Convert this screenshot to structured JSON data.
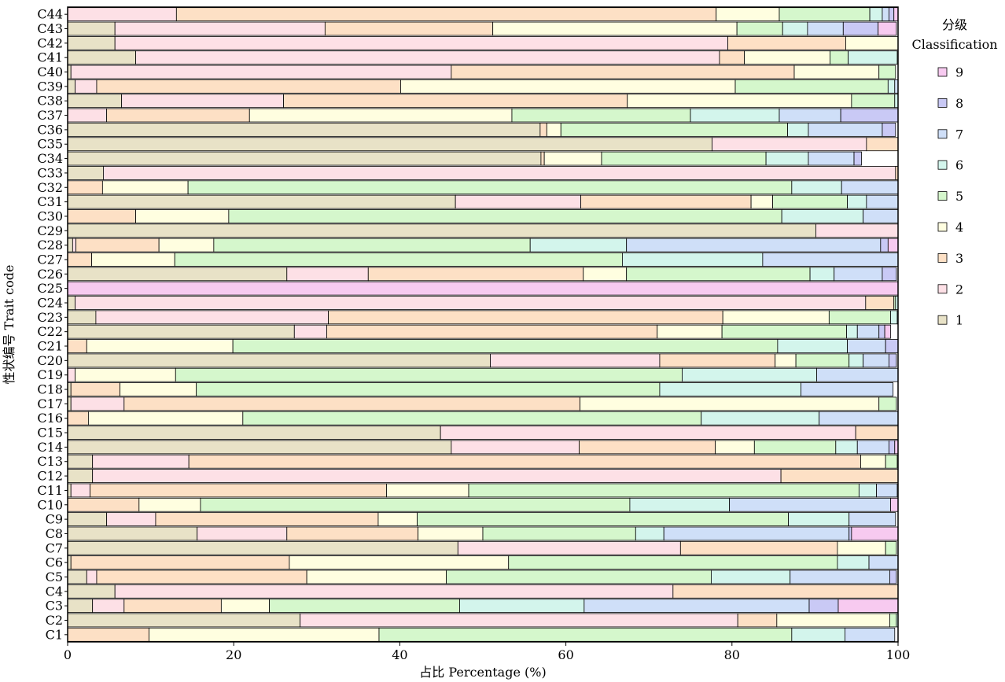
{
  "chart_data": {
    "type": "bar",
    "orientation": "horizontal",
    "stacked": true,
    "xlabel": "占比 Percentage (%)",
    "ylabel": "性状编号 Trait code",
    "xlim": [
      0,
      100
    ],
    "xticks": [
      "0",
      "20",
      "40",
      "60",
      "80",
      "100"
    ],
    "legend": {
      "title_line1": "分级",
      "title_line2": "Classification",
      "entries": [
        "9",
        "8",
        "7",
        "6",
        "5",
        "4",
        "3",
        "2",
        "1"
      ],
      "placement": "right"
    },
    "colors": {
      "1": "#e8e2c7",
      "2": "#fde0e6",
      "3": "#fde0c5",
      "4": "#fffee0",
      "5": "#d5f7cc",
      "6": "#d3f5ec",
      "7": "#cfdff8",
      "8": "#c9c9f5",
      "9": "#f7caf0"
    },
    "categories": [
      "C1",
      "C2",
      "C3",
      "C4",
      "C5",
      "C6",
      "C7",
      "C8",
      "C9",
      "C10",
      "C11",
      "C12",
      "C13",
      "C14",
      "C15",
      "C16",
      "C17",
      "C18",
      "C19",
      "C20",
      "C21",
      "C22",
      "C23",
      "C24",
      "C25",
      "C26",
      "C27",
      "C28",
      "C29",
      "C30",
      "C31",
      "C32",
      "C33",
      "C34",
      "C35",
      "C36",
      "C37",
      "C38",
      "C39",
      "C40",
      "C41",
      "C42",
      "C43",
      "C44"
    ],
    "series": [
      {
        "name": "1",
        "values": [
          0,
          28,
          3,
          5.7,
          2.3,
          0.4,
          47,
          15.6,
          4.7,
          0,
          0.4,
          3,
          3,
          46.2,
          44.9,
          0,
          0.4,
          0.4,
          0,
          50.9,
          0,
          27.3,
          3.4,
          0.9,
          0,
          26.4,
          0,
          0.6,
          90.1,
          0,
          46.7,
          0,
          4.3,
          57,
          77.6,
          56.9,
          0,
          6.5,
          0.9,
          0.4,
          8.2,
          5.7,
          5.7,
          0
        ]
      },
      {
        "name": "2",
        "values": [
          0,
          52.7,
          3.8,
          67.2,
          1.2,
          0,
          26.8,
          10.8,
          5.9,
          0,
          2.3,
          82.9,
          11.6,
          15.4,
          50,
          0,
          6.4,
          0,
          0.9,
          20.4,
          0,
          3.9,
          28,
          95.2,
          0,
          9.8,
          0,
          0.4,
          9.9,
          0,
          15.1,
          0,
          95.4,
          0,
          18.6,
          0,
          4.7,
          19.5,
          2.6,
          45.8,
          70.3,
          73.8,
          25.3,
          13.1
        ]
      },
      {
        "name": "3",
        "values": [
          9.8,
          4.7,
          11.7,
          27.1,
          25.3,
          26.3,
          18.9,
          15.8,
          26.8,
          8.6,
          35.7,
          14.1,
          80.9,
          16.4,
          5.1,
          2.5,
          54.9,
          5.9,
          0,
          13.9,
          2.3,
          39.8,
          47.5,
          3.4,
          0,
          25.9,
          2.9,
          10,
          0,
          8.2,
          20.5,
          4.2,
          0.3,
          0.4,
          3.8,
          0.8,
          17.2,
          41.4,
          36.6,
          41.3,
          3,
          14.2,
          20.2,
          65
        ]
      },
      {
        "name": "4",
        "values": [
          27.7,
          13.6,
          5.8,
          0,
          16.8,
          26.4,
          5.8,
          7.8,
          4.7,
          7.4,
          9.9,
          0,
          3,
          4.7,
          0,
          18.6,
          36,
          9.2,
          12.1,
          2.5,
          17.6,
          7.8,
          12.8,
          0,
          0,
          5.2,
          10,
          6.6,
          0,
          11.2,
          2.6,
          10.3,
          0,
          6.9,
          0,
          1.7,
          31.6,
          27,
          40.3,
          10.2,
          10.3,
          6.3,
          29.4,
          7.6
        ]
      },
      {
        "name": "5",
        "values": [
          49.7,
          0.8,
          22.9,
          0,
          31.9,
          39.6,
          1.3,
          18.4,
          44.7,
          51.7,
          47,
          0,
          1.4,
          9.8,
          0,
          55.2,
          2.1,
          55.8,
          61,
          6.4,
          65.6,
          15,
          7.4,
          0.2,
          0,
          22.1,
          53.9,
          38.1,
          0,
          66.6,
          9,
          72.7,
          0,
          19.8,
          0,
          27.3,
          21.5,
          5.2,
          18.4,
          2,
          2.2,
          0,
          5.5,
          10.9
        ]
      },
      {
        "name": "6",
        "values": [
          6.4,
          0.2,
          15,
          0,
          9.5,
          3.8,
          0,
          3.4,
          7.3,
          12,
          2.1,
          0,
          0,
          2.6,
          0,
          14.2,
          0,
          17,
          16.2,
          1.7,
          8.4,
          1.3,
          0.8,
          0.3,
          0,
          2.9,
          16.9,
          11.6,
          0,
          9.8,
          2.3,
          6,
          0,
          5.1,
          0,
          2.5,
          10.7,
          0.4,
          0.8,
          0,
          5.9,
          0,
          3,
          1.5
        ]
      },
      {
        "name": "7",
        "values": [
          6,
          0,
          27.1,
          0,
          12,
          3.5,
          0,
          22.3,
          5.6,
          19.4,
          2.5,
          0,
          0,
          3.8,
          0,
          9.5,
          0,
          11.1,
          9.8,
          3.1,
          4.6,
          2.6,
          0.5,
          0,
          0,
          5.8,
          16.3,
          30.6,
          0,
          4.2,
          3.8,
          6.8,
          0,
          5.5,
          0,
          8.9,
          7.4,
          0,
          0.5,
          0,
          0,
          0,
          4.3,
          0.8
        ]
      },
      {
        "name": "8",
        "values": [
          0,
          0,
          3.5,
          0,
          0.8,
          0,
          0,
          0.3,
          0,
          0,
          0,
          0,
          0,
          0.7,
          0,
          0,
          0,
          0,
          0,
          0.9,
          1.5,
          0.7,
          0,
          0,
          0,
          1.7,
          0,
          0.9,
          0,
          0,
          0,
          0,
          0,
          0.9,
          0,
          1.6,
          6.9,
          0,
          0,
          0,
          0,
          0,
          4.2,
          0.6
        ]
      },
      {
        "name": "9",
        "values": [
          0,
          0,
          7.2,
          0,
          0,
          0,
          0,
          5.6,
          0,
          0.9,
          0,
          0,
          0,
          0.4,
          0,
          0,
          0,
          0,
          0,
          0,
          0,
          0.7,
          0,
          0,
          100,
          0,
          0,
          1.2,
          0,
          0,
          0,
          0,
          0,
          0,
          0,
          0,
          0,
          0,
          0,
          0,
          0,
          0,
          2.2,
          0.5
        ]
      }
    ]
  }
}
